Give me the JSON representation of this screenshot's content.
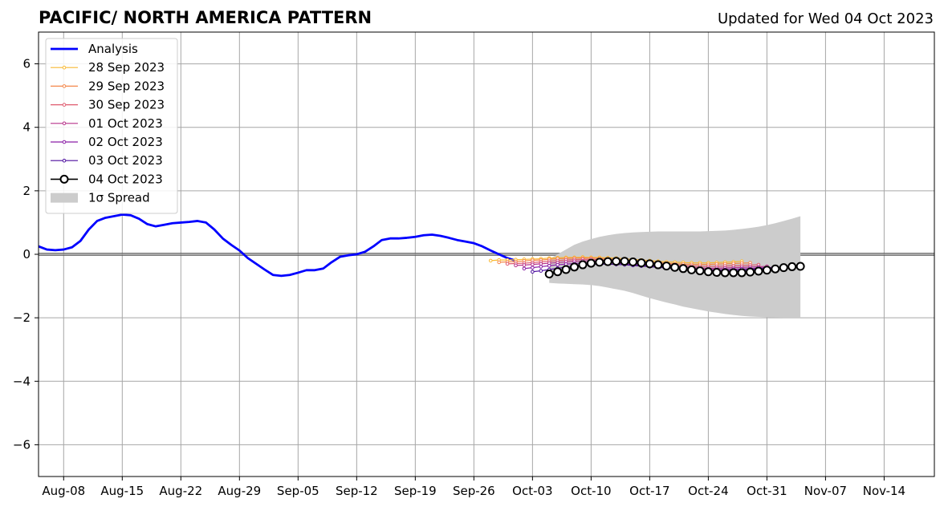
{
  "chart_data": {
    "type": "line",
    "title": "PACIFIC/ NORTH AMERICA PATTERN",
    "subtitle": "Updated for Wed 04 Oct 2023",
    "xlabel": "",
    "ylabel": "",
    "ylim": [
      -7,
      7
    ],
    "yticks": [
      -6,
      -4,
      -2,
      0,
      2,
      4,
      6
    ],
    "ytick_labels": [
      "−6",
      "−4",
      "−2",
      "0",
      "2",
      "4",
      "6"
    ],
    "xlim": [
      "2023-08-05",
      "2023-11-20"
    ],
    "xticks": [
      "2023-08-08",
      "2023-08-15",
      "2023-08-22",
      "2023-08-29",
      "2023-09-05",
      "2023-09-12",
      "2023-09-19",
      "2023-09-26",
      "2023-10-03",
      "2023-10-10",
      "2023-10-17",
      "2023-10-24",
      "2023-10-31",
      "2023-11-07",
      "2023-11-14"
    ],
    "xtick_labels": [
      "Aug-08",
      "Aug-15",
      "Aug-22",
      "Aug-29",
      "Sep-05",
      "Sep-12",
      "Sep-19",
      "Sep-26",
      "Oct-03",
      "Oct-10",
      "Oct-17",
      "Oct-24",
      "Oct-31",
      "Nov-07",
      "Nov-14"
    ],
    "grid": true,
    "legend_position": "top-left",
    "analysis": {
      "name": "Analysis",
      "color": "#0000ff",
      "x": [
        "2023-08-05",
        "2023-08-06",
        "2023-08-07",
        "2023-08-08",
        "2023-08-09",
        "2023-08-10",
        "2023-08-11",
        "2023-08-12",
        "2023-08-13",
        "2023-08-14",
        "2023-08-15",
        "2023-08-16",
        "2023-08-17",
        "2023-08-18",
        "2023-08-19",
        "2023-08-20",
        "2023-08-21",
        "2023-08-22",
        "2023-08-23",
        "2023-08-24",
        "2023-08-25",
        "2023-08-26",
        "2023-08-27",
        "2023-08-28",
        "2023-08-29",
        "2023-08-30",
        "2023-08-31",
        "2023-09-01",
        "2023-09-02",
        "2023-09-03",
        "2023-09-04",
        "2023-09-05",
        "2023-09-06",
        "2023-09-07",
        "2023-09-08",
        "2023-09-09",
        "2023-09-10",
        "2023-09-11",
        "2023-09-12",
        "2023-09-13",
        "2023-09-14",
        "2023-09-15",
        "2023-09-16",
        "2023-09-17",
        "2023-09-18",
        "2023-09-19",
        "2023-09-20",
        "2023-09-21",
        "2023-09-22",
        "2023-09-23",
        "2023-09-24",
        "2023-09-25",
        "2023-09-26",
        "2023-09-27",
        "2023-09-28",
        "2023-09-29",
        "2023-09-30",
        "2023-10-01"
      ],
      "y": [
        0.25,
        0.15,
        0.13,
        0.15,
        0.22,
        0.42,
        0.78,
        1.05,
        1.15,
        1.2,
        1.25,
        1.23,
        1.12,
        0.95,
        0.88,
        0.93,
        0.98,
        1.0,
        1.02,
        1.05,
        1.0,
        0.78,
        0.5,
        0.3,
        0.12,
        -0.12,
        -0.3,
        -0.48,
        -0.65,
        -0.68,
        -0.65,
        -0.58,
        -0.5,
        -0.5,
        -0.45,
        -0.25,
        -0.08,
        -0.03,
        0.0,
        0.08,
        0.25,
        0.45,
        0.5,
        0.5,
        0.52,
        0.55,
        0.6,
        0.62,
        0.58,
        0.52,
        0.45,
        0.4,
        0.35,
        0.25,
        0.12,
        0.0,
        -0.12,
        -0.2
      ]
    },
    "forecasts": [
      {
        "name": "28 Sep 2023",
        "color": "#f9b933",
        "start": "2023-09-28",
        "values": [
          -0.2,
          -0.18,
          -0.18,
          -0.17,
          -0.16,
          -0.15,
          -0.14,
          -0.12,
          -0.11,
          -0.1,
          -0.1,
          -0.09,
          -0.1,
          -0.1,
          -0.11,
          -0.12,
          -0.14,
          -0.16,
          -0.18,
          -0.2,
          -0.22,
          -0.24,
          -0.25,
          -0.26,
          -0.27,
          -0.27,
          -0.27,
          -0.26,
          -0.25,
          -0.24,
          -0.22
        ]
      },
      {
        "name": "29 Sep 2023",
        "color": "#f4874a",
        "start": "2023-09-29",
        "values": [
          -0.25,
          -0.24,
          -0.23,
          -0.21,
          -0.19,
          -0.18,
          -0.16,
          -0.14,
          -0.13,
          -0.12,
          -0.12,
          -0.12,
          -0.13,
          -0.14,
          -0.16,
          -0.18,
          -0.2,
          -0.22,
          -0.24,
          -0.26,
          -0.28,
          -0.3,
          -0.31,
          -0.32,
          -0.32,
          -0.32,
          -0.31,
          -0.3,
          -0.29,
          -0.28,
          -0.27
        ]
      },
      {
        "name": "30 Sep 2023",
        "color": "#df5a6e",
        "start": "2023-09-30",
        "values": [
          -0.3,
          -0.29,
          -0.28,
          -0.26,
          -0.24,
          -0.22,
          -0.2,
          -0.18,
          -0.17,
          -0.16,
          -0.16,
          -0.17,
          -0.18,
          -0.19,
          -0.21,
          -0.23,
          -0.25,
          -0.28,
          -0.3,
          -0.32,
          -0.34,
          -0.36,
          -0.37,
          -0.38,
          -0.38,
          -0.38,
          -0.37,
          -0.36,
          -0.35,
          -0.34,
          -0.33
        ]
      },
      {
        "name": "01 Oct 2023",
        "color": "#b7328a",
        "start": "2023-10-01",
        "values": [
          -0.35,
          -0.34,
          -0.32,
          -0.3,
          -0.28,
          -0.26,
          -0.24,
          -0.22,
          -0.21,
          -0.2,
          -0.2,
          -0.21,
          -0.23,
          -0.25,
          -0.27,
          -0.29,
          -0.31,
          -0.34,
          -0.36,
          -0.38,
          -0.4,
          -0.42,
          -0.43,
          -0.44,
          -0.44,
          -0.43,
          -0.42,
          -0.41,
          -0.4,
          -0.39,
          -0.38
        ]
      },
      {
        "name": "02 Oct 2023",
        "color": "#8a1ea6",
        "start": "2023-10-02",
        "values": [
          -0.45,
          -0.42,
          -0.39,
          -0.36,
          -0.33,
          -0.31,
          -0.29,
          -0.27,
          -0.26,
          -0.26,
          -0.27,
          -0.28,
          -0.3,
          -0.32,
          -0.34,
          -0.36,
          -0.38,
          -0.4,
          -0.42,
          -0.44,
          -0.46,
          -0.47,
          -0.48,
          -0.48,
          -0.48,
          -0.47,
          -0.46,
          -0.45,
          -0.43,
          -0.42,
          -0.41
        ]
      },
      {
        "name": "03 Oct 2023",
        "color": "#4b0c9e",
        "start": "2023-10-03",
        "values": [
          -0.55,
          -0.52,
          -0.48,
          -0.44,
          -0.4,
          -0.37,
          -0.34,
          -0.32,
          -0.31,
          -0.31,
          -0.32,
          -0.33,
          -0.35,
          -0.37,
          -0.39,
          -0.41,
          -0.43,
          -0.45,
          -0.47,
          -0.49,
          -0.5,
          -0.51,
          -0.52,
          -0.52,
          -0.51,
          -0.5,
          -0.48,
          -0.46,
          -0.44,
          -0.42,
          -0.4
        ]
      },
      {
        "name": "04 Oct 2023",
        "color": "#000000",
        "start": "2023-10-05",
        "values": [
          -0.62,
          -0.55,
          -0.48,
          -0.4,
          -0.33,
          -0.28,
          -0.25,
          -0.23,
          -0.22,
          -0.22,
          -0.24,
          -0.27,
          -0.3,
          -0.33,
          -0.37,
          -0.41,
          -0.45,
          -0.49,
          -0.52,
          -0.55,
          -0.57,
          -0.58,
          -0.58,
          -0.58,
          -0.56,
          -0.53,
          -0.5,
          -0.46,
          -0.42,
          -0.39,
          -0.38
        ]
      }
    ],
    "spread": {
      "name": "1σ Spread",
      "color": "#cccccc",
      "start": "2023-10-05",
      "upper": [
        -0.15,
        0.0,
        0.15,
        0.3,
        0.4,
        0.48,
        0.55,
        0.6,
        0.64,
        0.67,
        0.69,
        0.7,
        0.71,
        0.72,
        0.72,
        0.72,
        0.72,
        0.72,
        0.72,
        0.73,
        0.74,
        0.75,
        0.77,
        0.8,
        0.83,
        0.87,
        0.92,
        0.98,
        1.05,
        1.12,
        1.2
      ],
      "lower": [
        -0.9,
        -0.92,
        -0.93,
        -0.94,
        -0.95,
        -0.97,
        -1.0,
        -1.05,
        -1.1,
        -1.15,
        -1.22,
        -1.3,
        -1.38,
        -1.45,
        -1.52,
        -1.58,
        -1.65,
        -1.7,
        -1.75,
        -1.8,
        -1.84,
        -1.88,
        -1.91,
        -1.94,
        -1.96,
        -1.97,
        -1.98,
        -1.99,
        -2.0,
        -2.0,
        -2.0
      ]
    }
  }
}
